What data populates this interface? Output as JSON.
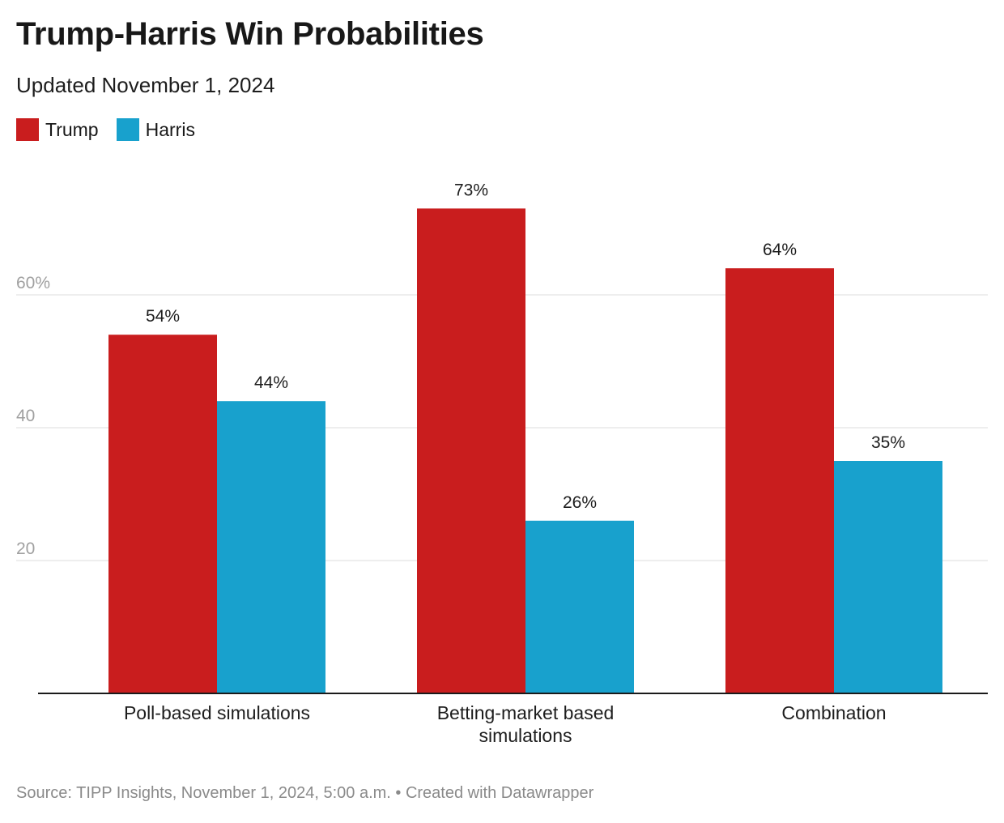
{
  "header": {
    "title": "Trump-Harris Win Probabilities",
    "subtitle": "Updated November 1, 2024"
  },
  "legend": [
    {
      "label": "Trump",
      "color": "#c91d1e"
    },
    {
      "label": "Harris",
      "color": "#18a1cd"
    }
  ],
  "footer": {
    "source": "Source: TIPP Insights, November 1, 2024, 5:00 a.m. • Created with Datawrapper"
  },
  "chart_data": {
    "type": "bar",
    "title": "Trump-Harris Win Probabilities",
    "subtitle": "Updated November 1, 2024",
    "categories": [
      [
        "Poll-based simulations"
      ],
      [
        "Betting-market based",
        "simulations"
      ],
      [
        "Combination"
      ]
    ],
    "series": [
      {
        "name": "Trump",
        "color": "#c91d1e",
        "values": [
          54,
          73,
          64
        ],
        "labels": [
          "54%",
          "73%",
          "64%"
        ]
      },
      {
        "name": "Harris",
        "color": "#18a1cd",
        "values": [
          44,
          26,
          35
        ],
        "labels": [
          "44%",
          "26%",
          "35%"
        ]
      }
    ],
    "yticks": [
      {
        "value": 20,
        "label": "20"
      },
      {
        "value": 40,
        "label": "40"
      },
      {
        "value": 60,
        "label": "60%"
      }
    ],
    "ylim": [
      0,
      80
    ],
    "grid": true,
    "legend_position": "top-left",
    "xlabel": "",
    "ylabel": ""
  }
}
